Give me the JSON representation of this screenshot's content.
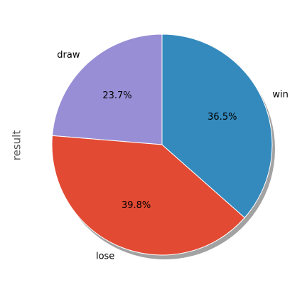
{
  "chart_data": {
    "type": "pie",
    "ylabel": "result",
    "start_angle_deg": 90,
    "counterclock": true,
    "shadow": true,
    "slices": [
      {
        "label": "draw",
        "value": 23.7,
        "pct_label": "23.7%",
        "color": "#988ED5"
      },
      {
        "label": "lose",
        "value": 39.8,
        "pct_label": "39.8%",
        "color": "#E24A33"
      },
      {
        "label": "win",
        "value": 36.5,
        "pct_label": "36.5%",
        "color": "#348ABD"
      }
    ]
  }
}
